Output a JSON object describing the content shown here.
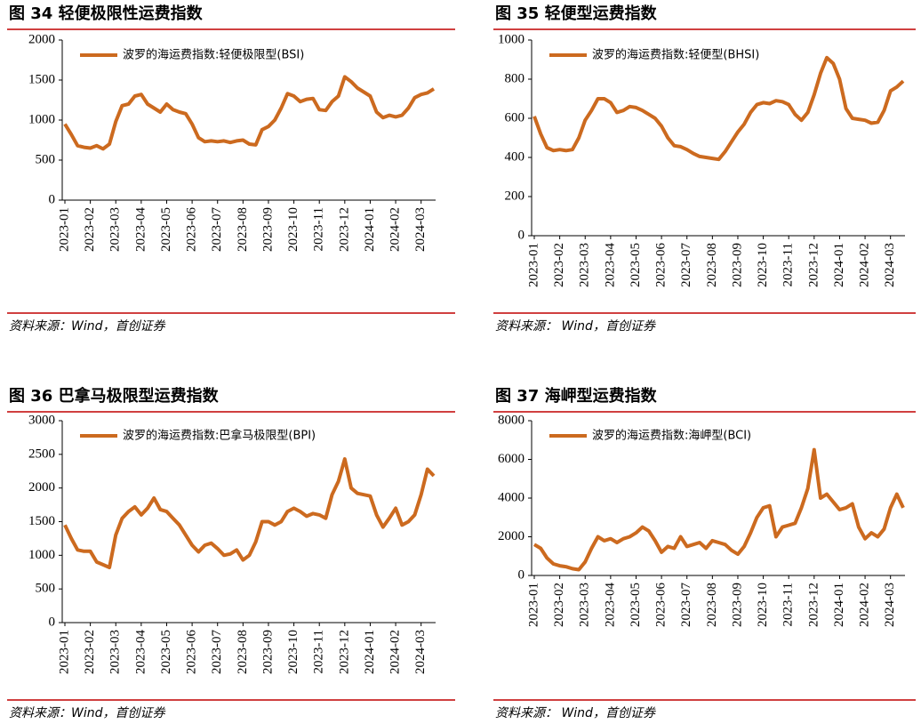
{
  "chart_data": [
    {
      "type": "line",
      "title": "图 34 轻便极限性运费指数",
      "source": "资料来源：Wind，首创证券",
      "legend": "upper left",
      "categories": [
        "2023-01",
        null,
        null,
        null,
        "2023-02",
        null,
        null,
        null,
        "2023-03",
        null,
        null,
        null,
        "2023-04",
        null,
        null,
        null,
        "2023-05",
        null,
        null,
        null,
        "2023-06",
        null,
        null,
        null,
        "2023-07",
        null,
        null,
        null,
        "2023-08",
        null,
        null,
        null,
        "2023-09",
        null,
        null,
        null,
        "2023-10",
        null,
        null,
        null,
        "2023-11",
        null,
        null,
        null,
        "2023-12",
        null,
        null,
        null,
        "2024-01",
        null,
        null,
        null,
        "2024-02",
        null,
        null,
        null,
        "2024-03",
        null,
        null
      ],
      "series": [
        {
          "name": "波罗的海运费指数:轻便极限型(BSI)",
          "color": "#cc6a1f",
          "values": [
            950,
            820,
            680,
            660,
            650,
            680,
            640,
            700,
            980,
            1180,
            1200,
            1300,
            1320,
            1200,
            1150,
            1100,
            1200,
            1130,
            1100,
            1080,
            950,
            780,
            730,
            740,
            730,
            740,
            720,
            740,
            750,
            700,
            690,
            880,
            920,
            1000,
            1150,
            1330,
            1300,
            1230,
            1260,
            1270,
            1130,
            1120,
            1230,
            1300,
            1540,
            1480,
            1400,
            1350,
            1300,
            1100,
            1030,
            1060,
            1040,
            1060,
            1150,
            1280,
            1320,
            1340,
            1390
          ]
        }
      ],
      "ylim": [
        0,
        2000
      ],
      "yticks": [
        0,
        500,
        1000,
        1500,
        2000
      ]
    },
    {
      "type": "line",
      "title": "图 35 轻便型运费指数",
      "source": "资料来源： Wind，首创证券",
      "legend": "upper left",
      "categories": [
        "2023-01",
        null,
        null,
        null,
        "2023-02",
        null,
        null,
        null,
        "2023-03",
        null,
        null,
        null,
        "2023-04",
        null,
        null,
        null,
        "2023-05",
        null,
        null,
        null,
        "2023-06",
        null,
        null,
        null,
        "2023-07",
        null,
        null,
        null,
        "2023-08",
        null,
        null,
        null,
        "2023-09",
        null,
        null,
        null,
        "2023-10",
        null,
        null,
        null,
        "2023-11",
        null,
        null,
        null,
        "2023-12",
        null,
        null,
        null,
        "2024-01",
        null,
        null,
        null,
        "2024-02",
        null,
        null,
        null,
        "2024-03",
        null,
        null
      ],
      "series": [
        {
          "name": "波罗的海运费指数:轻便型(BHSI)",
          "color": "#cc6a1f",
          "values": [
            610,
            520,
            450,
            435,
            440,
            435,
            440,
            500,
            590,
            640,
            700,
            700,
            680,
            630,
            640,
            660,
            655,
            640,
            620,
            600,
            560,
            500,
            460,
            455,
            440,
            420,
            405,
            400,
            395,
            390,
            430,
            480,
            530,
            570,
            630,
            670,
            680,
            675,
            690,
            685,
            670,
            620,
            590,
            630,
            720,
            830,
            910,
            880,
            800,
            650,
            600,
            595,
            590,
            575,
            580,
            640,
            740,
            760,
            790
          ]
        }
      ],
      "ylim": [
        0,
        1000
      ],
      "yticks": [
        0,
        200,
        400,
        600,
        800,
        1000
      ]
    },
    {
      "type": "line",
      "title": "图 36 巴拿马极限型运费指数",
      "source": "资料来源：Wind，首创证券",
      "legend": "upper left",
      "categories": [
        "2023-01",
        null,
        null,
        null,
        "2023-02",
        null,
        null,
        null,
        "2023-03",
        null,
        null,
        null,
        "2023-04",
        null,
        null,
        null,
        "2023-05",
        null,
        null,
        null,
        "2023-06",
        null,
        null,
        null,
        "2023-07",
        null,
        null,
        null,
        "2023-08",
        null,
        null,
        null,
        "2023-09",
        null,
        null,
        null,
        "2023-10",
        null,
        null,
        null,
        "2023-11",
        null,
        null,
        null,
        "2023-12",
        null,
        null,
        null,
        "2024-01",
        null,
        null,
        null,
        "2024-02",
        null,
        null,
        null,
        "2024-03",
        null,
        null
      ],
      "series": [
        {
          "name": "波罗的海运费指数:巴拿马极限型(BPI)",
          "color": "#cc6a1f",
          "values": [
            1450,
            1250,
            1080,
            1060,
            1060,
            900,
            860,
            820,
            1300,
            1550,
            1650,
            1720,
            1600,
            1700,
            1850,
            1680,
            1650,
            1550,
            1450,
            1300,
            1150,
            1050,
            1150,
            1180,
            1100,
            1000,
            1020,
            1080,
            930,
            1000,
            1200,
            1500,
            1500,
            1450,
            1500,
            1650,
            1700,
            1650,
            1580,
            1620,
            1600,
            1550,
            1900,
            2100,
            2430,
            2000,
            1920,
            1900,
            1880,
            1600,
            1420,
            1550,
            1700,
            1450,
            1500,
            1600,
            1900,
            2280,
            2180
          ]
        }
      ],
      "ylim": [
        0,
        3000
      ],
      "yticks": [
        0,
        500,
        1000,
        1500,
        2000,
        2500,
        3000
      ]
    },
    {
      "type": "line",
      "title": "图 37 海岬型运费指数",
      "source": "资料来源： Wind，首创证券",
      "legend": "upper left",
      "categories": [
        "2023-01",
        null,
        null,
        null,
        "2023-02",
        null,
        null,
        null,
        "2023-03",
        null,
        null,
        null,
        "2023-04",
        null,
        null,
        null,
        "2023-05",
        null,
        null,
        null,
        "2023-06",
        null,
        null,
        null,
        "2023-07",
        null,
        null,
        null,
        "2023-08",
        null,
        null,
        null,
        "2023-09",
        null,
        null,
        null,
        "2023-10",
        null,
        null,
        null,
        "2023-11",
        null,
        null,
        null,
        "2023-12",
        null,
        null,
        null,
        "2024-01",
        null,
        null,
        null,
        "2024-02",
        null,
        null,
        null,
        "2024-03",
        null,
        null
      ],
      "series": [
        {
          "name": "波罗的海运费指数:海岬型(BCI)",
          "color": "#cc6a1f",
          "values": [
            1600,
            1400,
            900,
            600,
            500,
            450,
            350,
            300,
            700,
            1400,
            2000,
            1800,
            1900,
            1700,
            1900,
            2000,
            2200,
            2500,
            2300,
            1800,
            1200,
            1500,
            1400,
            2000,
            1500,
            1600,
            1700,
            1400,
            1800,
            1700,
            1600,
            1300,
            1100,
            1500,
            2200,
            3000,
            3500,
            3600,
            2000,
            2500,
            2600,
            2700,
            3500,
            4500,
            6500,
            4000,
            4200,
            3800,
            3400,
            3500,
            3700,
            2500,
            1900,
            2200,
            2000,
            2400,
            3500,
            4200,
            3500
          ]
        }
      ],
      "ylim": [
        0,
        8000
      ],
      "yticks": [
        0,
        2000,
        4000,
        6000,
        8000
      ]
    }
  ]
}
